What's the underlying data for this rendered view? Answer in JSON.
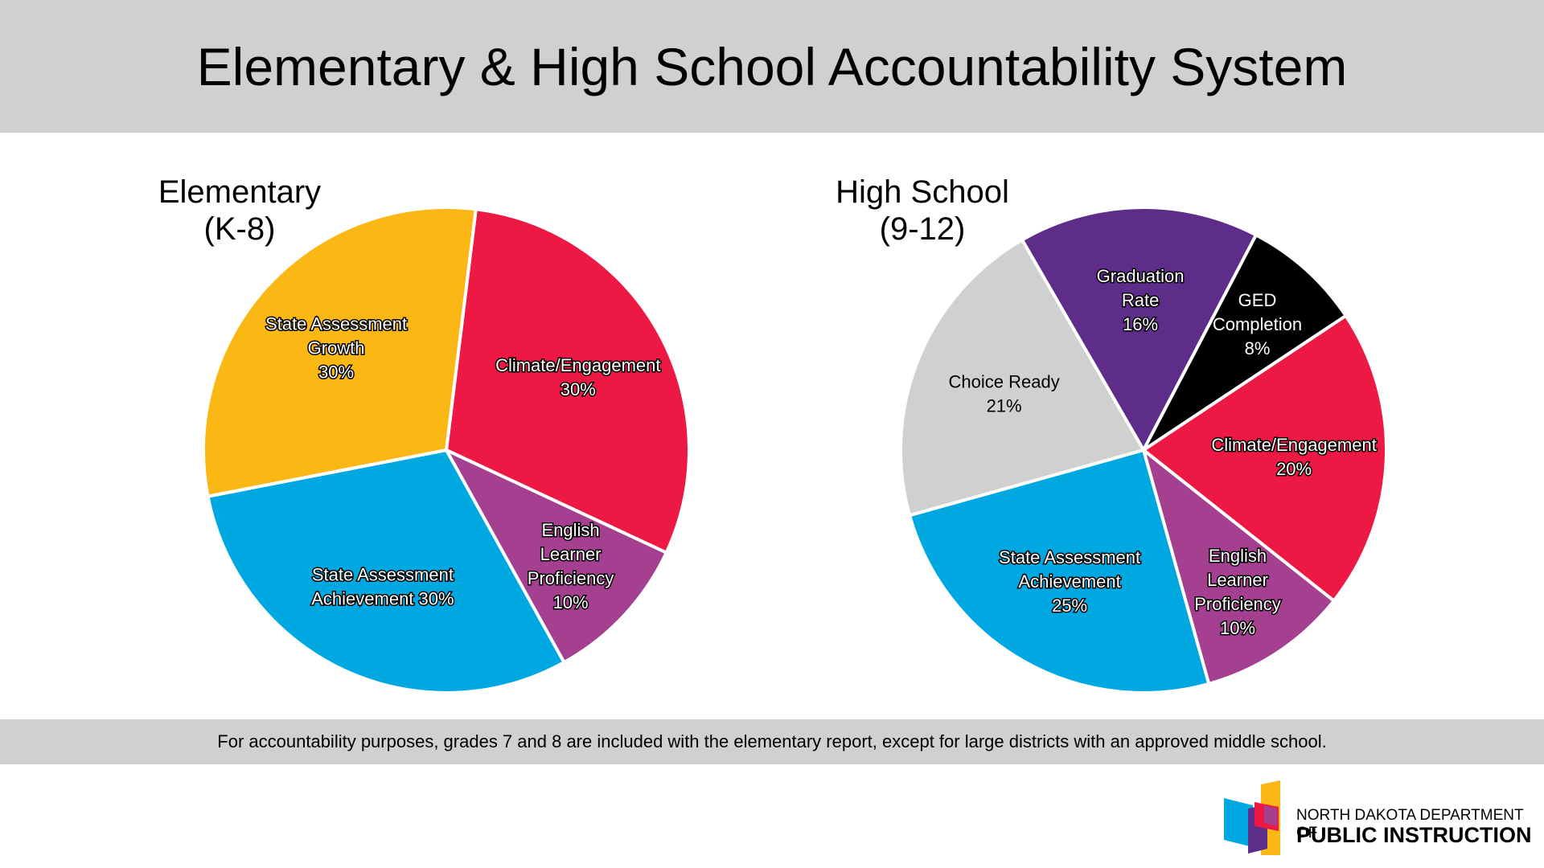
{
  "header": {
    "title": "Elementary & High School Accountability System"
  },
  "footnote": "For accountability purposes, grades 7 and 8 are included with the elementary report, except for large districts with an approved middle school.",
  "logo": {
    "line1": "NORTH DAKOTA DEPARTMENT OF",
    "line2": "PUBLIC INSTRUCTION",
    "colors": [
      "#00a8e1",
      "#fbb713",
      "#5e2d8a",
      "#ee1844",
      "#a53f8f"
    ]
  },
  "chart_data": [
    {
      "type": "pie",
      "title_line1": "Elementary",
      "title_line2": "(K-8)",
      "slices": [
        {
          "label": [
            "Climate/Engagement",
            "30%"
          ],
          "value": 30,
          "color": "#ee1844"
        },
        {
          "label": [
            "English",
            "Learner",
            "Proficiency",
            "10%"
          ],
          "value": 10,
          "color": "#a53f8f"
        },
        {
          "label": [
            "State Assessment",
            "Achievement 30%"
          ],
          "value": 30,
          "color": "#00a8e1"
        },
        {
          "label": [
            "State Assessment",
            "Growth",
            "30%"
          ],
          "value": 30,
          "color": "#fbb713"
        }
      ]
    },
    {
      "type": "pie",
      "title_line1": "High School",
      "title_line2": "(9-12)",
      "slices": [
        {
          "label": [
            "Graduation",
            "Rate",
            "16%"
          ],
          "value": 16,
          "color": "#5e2d8a"
        },
        {
          "label": [
            "GED",
            "Completion",
            "8%"
          ],
          "value": 8,
          "color": "#000000"
        },
        {
          "label": [
            "Climate/Engagement",
            "20%"
          ],
          "value": 20,
          "color": "#ee1844"
        },
        {
          "label": [
            "English",
            "Learner",
            "Proficiency",
            "10%"
          ],
          "value": 10,
          "color": "#a53f8f"
        },
        {
          "label": [
            "State Assessment",
            "Achievement",
            "25%"
          ],
          "value": 25,
          "color": "#00a8e1"
        },
        {
          "label": [
            "Choice Ready",
            "21%"
          ],
          "value": 21,
          "color": "#d0d0d0",
          "dark_label": true
        }
      ]
    }
  ]
}
